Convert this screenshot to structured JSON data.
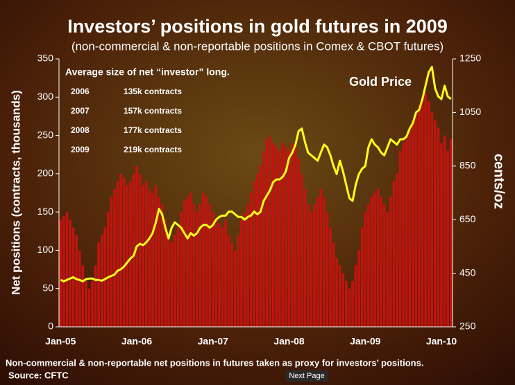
{
  "chart_data": {
    "type": "combo",
    "title": "Investors’ positions in gold futures in 2009",
    "subtitle": "(non-commercial & non-reportable positions in Comex & CBOT futures)",
    "y_label": "Net positions (contracts, thousands)",
    "y2_label": "cents/oz",
    "inset": {
      "title": "Average size of net “investor” long.",
      "rows": [
        [
          "2006",
          "135k contracts"
        ],
        [
          "2007",
          "157k contracts"
        ],
        [
          "2008",
          "177k contracts"
        ],
        [
          "2009",
          "219k contracts"
        ]
      ]
    },
    "categories": [
      "Jan-05",
      null,
      null,
      null,
      null,
      null,
      null,
      null,
      null,
      null,
      null,
      null,
      null,
      null,
      null,
      null,
      null,
      null,
      null,
      null,
      null,
      null,
      null,
      null,
      "Jan-06",
      null,
      null,
      null,
      null,
      null,
      null,
      null,
      null,
      null,
      null,
      null,
      null,
      null,
      null,
      null,
      null,
      null,
      null,
      null,
      null,
      null,
      null,
      null,
      "Jan-07",
      null,
      null,
      null,
      null,
      null,
      null,
      null,
      null,
      null,
      null,
      null,
      null,
      null,
      null,
      null,
      null,
      null,
      null,
      null,
      null,
      null,
      null,
      null,
      "Jan-08",
      null,
      null,
      null,
      null,
      null,
      null,
      null,
      null,
      null,
      null,
      null,
      null,
      null,
      null,
      null,
      null,
      null,
      null,
      null,
      null,
      null,
      null,
      null,
      "Jan-09",
      null,
      null,
      null,
      null,
      null,
      null,
      null,
      null,
      null,
      null,
      null,
      null,
      null,
      null,
      null,
      null,
      null,
      null,
      null,
      null,
      null,
      null,
      null,
      "Jan-10",
      null,
      null,
      null
    ],
    "series": [
      {
        "type": "bar",
        "axis": "y",
        "color": "#c0140e",
        "values": [
          140,
          145,
          150,
          140,
          130,
          120,
          100,
          80,
          60,
          50,
          60,
          80,
          110,
          120,
          130,
          150,
          170,
          180,
          190,
          200,
          195,
          185,
          190,
          200,
          210,
          200,
          185,
          190,
          180,
          175,
          185,
          170,
          160,
          140,
          120,
          110,
          120,
          130,
          150,
          165,
          170,
          175,
          160,
          150,
          160,
          175,
          170,
          160,
          150,
          140,
          135,
          130,
          140,
          120,
          110,
          100,
          120,
          140,
          150,
          160,
          175,
          190,
          200,
          210,
          230,
          245,
          250,
          240,
          235,
          230,
          240,
          235,
          230,
          240,
          235,
          220,
          200,
          180,
          160,
          150,
          160,
          170,
          180,
          170,
          150,
          130,
          110,
          90,
          80,
          70,
          60,
          50,
          60,
          80,
          100,
          130,
          150,
          160,
          170,
          175,
          180,
          170,
          160,
          150,
          170,
          190,
          200,
          230,
          240,
          250,
          260,
          270,
          280,
          290,
          300,
          305,
          295,
          280,
          270,
          260,
          240,
          250,
          230,
          245
        ]
      },
      {
        "type": "line",
        "axis": "y2",
        "name": "Gold Price",
        "color": "#ffff1a",
        "values": [
          425,
          420,
          425,
          430,
          435,
          428,
          425,
          420,
          428,
          430,
          430,
          425,
          425,
          422,
          428,
          435,
          440,
          445,
          460,
          465,
          475,
          490,
          505,
          515,
          550,
          560,
          555,
          565,
          580,
          600,
          640,
          690,
          670,
          620,
          580,
          620,
          640,
          630,
          620,
          600,
          580,
          600,
          590,
          600,
          620,
          630,
          630,
          620,
          630,
          650,
          660,
          665,
          665,
          680,
          680,
          670,
          660,
          660,
          650,
          660,
          665,
          680,
          670,
          680,
          720,
          740,
          760,
          790,
          800,
          800,
          810,
          830,
          880,
          900,
          930,
          980,
          990,
          940,
          900,
          890,
          880,
          870,
          900,
          930,
          920,
          890,
          850,
          820,
          870,
          830,
          780,
          730,
          720,
          780,
          820,
          840,
          850,
          920,
          950,
          930,
          920,
          900,
          890,
          920,
          950,
          940,
          930,
          950,
          950,
          960,
          990,
          1010,
          1050,
          1060,
          1100,
          1150,
          1200,
          1220,
          1140,
          1110,
          1100,
          1150,
          1110,
          1100
        ]
      }
    ],
    "ylim": [
      0,
      350
    ],
    "yticks": [
      0,
      50,
      100,
      150,
      200,
      250,
      300,
      350
    ],
    "y2lim": [
      250,
      1250
    ],
    "y2ticks": [
      250,
      450,
      650,
      850,
      1050,
      1250
    ]
  },
  "footnote": "Non-commercial & non-reportable net positions in futures taken as proxy for investors’ positions.",
  "source": "Source: CFTC",
  "button": "Next Page"
}
